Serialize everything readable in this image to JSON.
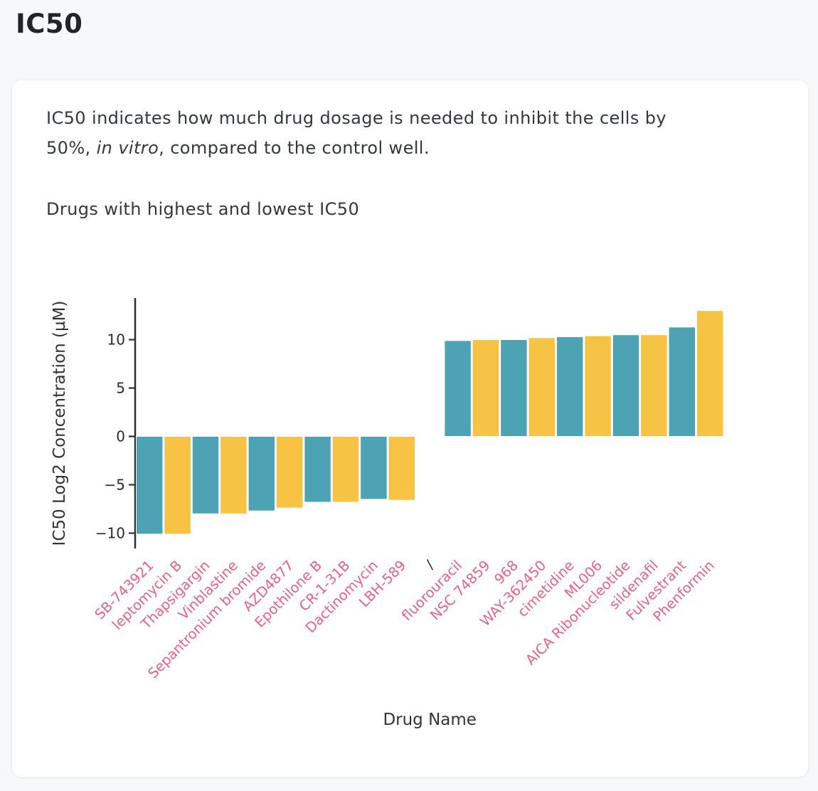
{
  "header": {
    "title": "IC50"
  },
  "card": {
    "description": {
      "line1": "IC50 indicates how much drug dosage is needed to inhibit the cells by",
      "line2_pre": "50%, ",
      "italic": "in vitro",
      "line2_post": ", compared to the control well."
    },
    "subtitle": "Drugs with highest and lowest IC50"
  },
  "chart_data": {
    "type": "bar",
    "title": "",
    "xlabel": "Drug Name",
    "ylabel": "IC50 Log2 Concentration (µM)",
    "ytick_values": [
      10,
      5,
      0,
      -5,
      -10
    ],
    "ytick_labels": [
      "10",
      "5",
      "0",
      "−5",
      "−10"
    ],
    "ylim": [
      -11.5,
      14.3
    ],
    "grid": false,
    "legend": "none",
    "separator_index": 10,
    "categories": [
      "SB-743921",
      "leptomycin B",
      "Thapsigargin",
      "Vinblastine",
      "Sepantronium bromide",
      "AZD4877",
      "Epothilone B",
      "CR-1-31B",
      "Dactinomycin",
      "LBH-589",
      "/",
      "fluorouracil",
      "NSC 74859",
      "968",
      "WAY-362450",
      "cimetidine",
      "ML006",
      "AICA Ribonucleotide",
      "sildenafil",
      "Fulvestrant",
      "Phenformin"
    ],
    "values": [
      -10.1,
      -10.1,
      -8.0,
      -8.0,
      -7.7,
      -7.4,
      -6.8,
      -6.8,
      -6.5,
      -6.6,
      null,
      9.9,
      10.0,
      10.0,
      10.2,
      10.3,
      10.4,
      10.5,
      10.5,
      11.3,
      13.0
    ],
    "colors": {
      "bar_alternate": [
        "#4DA2B3",
        "#F6C344"
      ],
      "drug_label": "#EE5F86",
      "separator_label": "#2b2b2b",
      "axis": "#2e2e2e",
      "tick_label": "#2b2b2b",
      "axis_title": "#333333"
    }
  }
}
